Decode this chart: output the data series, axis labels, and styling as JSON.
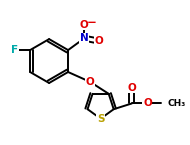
{
  "background_color": "#ffffff",
  "atom_colors": {
    "O": "#e00000",
    "N": "#0000cc",
    "F": "#00aaaa",
    "S": "#b8a000"
  },
  "bond_color": "#000000",
  "bond_width": 1.4,
  "font_size_atoms": 7.5,
  "font_size_ch3": 6.5
}
